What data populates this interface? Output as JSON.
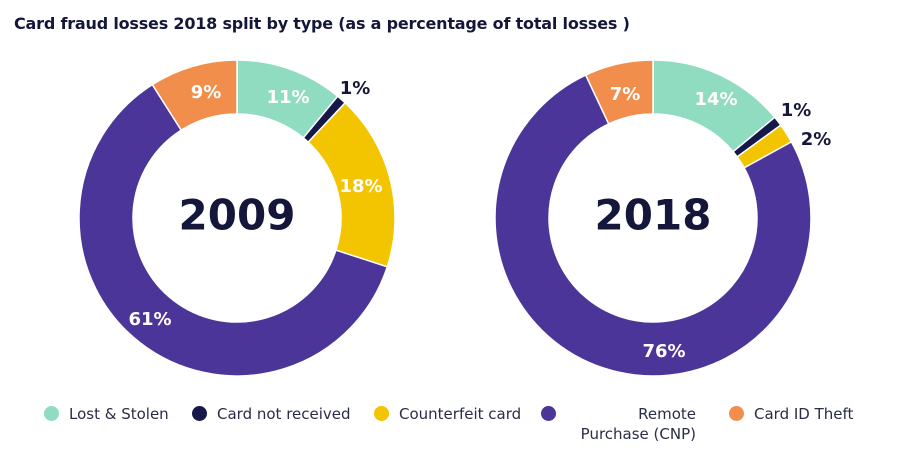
{
  "title": "Card fraud losses 2018 split by type (as a percentage of total losses )",
  "legend": [
    {
      "label": "Lost & Stolen",
      "color": "#8fdcc1"
    },
    {
      "label": "Card not received",
      "color": "#16184a"
    },
    {
      "label": "Counterfeit card",
      "color": "#f3c400"
    },
    {
      "label": "Remote Purchase (CNP)",
      "color": "#4b3598"
    },
    {
      "label": "Card ID Theft",
      "color": "#f28e4c"
    }
  ],
  "chart_data": [
    {
      "type": "pie",
      "subtype": "donut",
      "center_label": "2009",
      "categories": [
        "Lost & Stolen",
        "Card not received",
        "Counterfeit card",
        "Remote Purchase (CNP)",
        "Card ID Theft"
      ],
      "values": [
        11,
        1,
        18,
        61,
        9
      ],
      "labels": [
        "11%",
        "1%",
        "18%",
        "61%",
        "9%"
      ]
    },
    {
      "type": "pie",
      "subtype": "donut",
      "center_label": "2018",
      "categories": [
        "Lost & Stolen",
        "Card not received",
        "Counterfeit card",
        "Remote Purchase (CNP)",
        "Card ID Theft"
      ],
      "values": [
        14,
        1,
        2,
        76,
        7
      ],
      "labels": [
        "14%",
        "1%",
        "2%",
        "76%",
        "7%"
      ]
    }
  ]
}
